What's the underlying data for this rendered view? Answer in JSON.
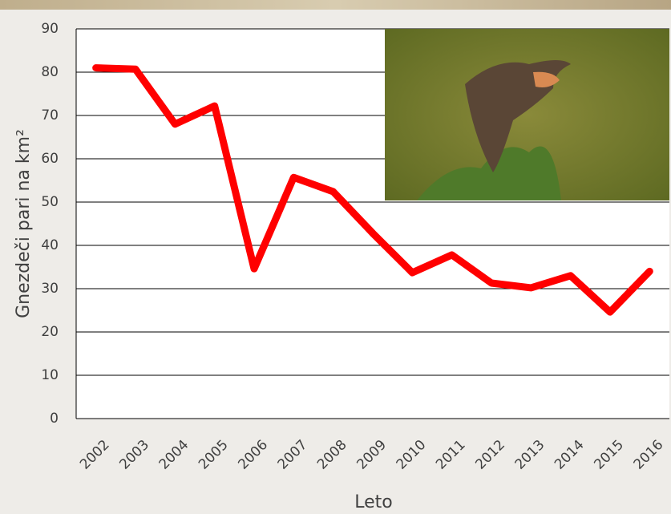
{
  "chart_data": {
    "type": "line",
    "ylabel": "Gnezdeči pari  na km²",
    "xlabel": "Leto",
    "categories": [
      "2002",
      "2003",
      "2004",
      "2005",
      "2006",
      "2007",
      "2008",
      "2009",
      "2010",
      "2011",
      "2012",
      "2013",
      "2014",
      "2015",
      "2016"
    ],
    "values": [
      81,
      80.7,
      68,
      72.2,
      34.6,
      55.7,
      52.4,
      42.8,
      33.7,
      37.8,
      31.3,
      30.2,
      33,
      24.6,
      34
    ],
    "color": "#ff0000",
    "ylim": [
      0,
      90
    ],
    "yticks": [
      0,
      10,
      20,
      30,
      40,
      50,
      60,
      70,
      80,
      90
    ],
    "grid": true
  }
}
